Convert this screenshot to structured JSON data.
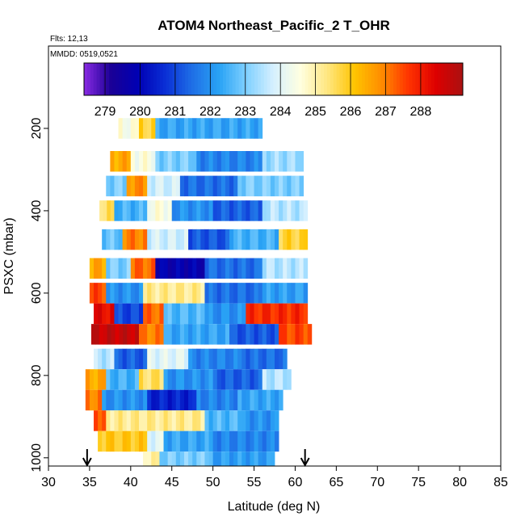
{
  "chart_data": {
    "type": "heatmap",
    "title": "ATOM4 Northeast_Pacific_2 T_OHR",
    "flights_label": "Flts: 12,13",
    "dates_label": "MMDD: 0519,0521",
    "xlabel": "Latitude (deg N)",
    "ylabel": "PSXC (mbar)",
    "xlim": [
      30,
      85
    ],
    "ylim": [
      1020,
      0
    ],
    "y_reversed": true,
    "x_ticks": [
      "30",
      "35",
      "40",
      "45",
      "50",
      "55",
      "60",
      "65",
      "70",
      "75",
      "80",
      "85"
    ],
    "y_ticks": [
      "200",
      "400",
      "600",
      "800",
      "1000"
    ],
    "colorbar": {
      "min": 278.4,
      "max": 289.2,
      "tick_labels": [
        "279",
        "280",
        "281",
        "282",
        "283",
        "284",
        "285",
        "286",
        "287",
        "288"
      ],
      "colors": [
        "#8a2be2",
        "#1a0096",
        "#0000b4",
        "#0a2fd6",
        "#1f6fe6",
        "#29a3f5",
        "#7fd0ff",
        "#d6f0ff",
        "#ffffe0",
        "#ffe680",
        "#ffc400",
        "#ff8c00",
        "#ff3300",
        "#dd0000",
        "#aa1111"
      ],
      "position": "top"
    },
    "grid": false,
    "arrows_latitude": [
      34.7,
      61.2
    ],
    "rows": [
      {
        "p": 200,
        "segments": [
          [
            38.5,
            41,
            284.5
          ],
          [
            41,
            43,
            285.8
          ],
          [
            43,
            56,
            282.3
          ]
        ]
      },
      {
        "p": 280,
        "segments": [
          [
            37.5,
            40,
            286.5
          ],
          [
            40,
            43,
            284.5
          ],
          [
            43,
            48,
            283.0
          ],
          [
            48,
            56,
            281.8
          ],
          [
            56,
            61,
            283.3
          ]
        ]
      },
      {
        "p": 340,
        "segments": [
          [
            37,
            39.5,
            283.0
          ],
          [
            39.5,
            42,
            286.8
          ],
          [
            42,
            46,
            283.8
          ],
          [
            46,
            53,
            281.5
          ],
          [
            53,
            61,
            283.0
          ]
        ]
      },
      {
        "p": 400,
        "segments": [
          [
            36.2,
            38,
            285.5
          ],
          [
            38,
            42,
            282.5
          ],
          [
            42,
            45,
            284.5
          ],
          [
            45,
            50,
            282.0
          ],
          [
            50,
            56,
            281.3
          ],
          [
            56,
            61.5,
            283.5
          ]
        ]
      },
      {
        "p": 470,
        "segments": [
          [
            36.5,
            39,
            282.8
          ],
          [
            39,
            42,
            287.0
          ],
          [
            42,
            47,
            283.8
          ],
          [
            47,
            52,
            281.2
          ],
          [
            52,
            58,
            282.5
          ],
          [
            58,
            61.5,
            285.8
          ]
        ]
      },
      {
        "p": 540,
        "segments": [
          [
            35,
            37,
            286.5
          ],
          [
            37,
            40,
            283.0
          ],
          [
            40,
            43,
            287.2
          ],
          [
            43,
            49,
            279.8
          ],
          [
            49,
            56,
            281.5
          ],
          [
            56,
            61.5,
            283.5
          ]
        ]
      },
      {
        "p": 600,
        "segments": [
          [
            35,
            37,
            287.5
          ],
          [
            37,
            41.5,
            282.0
          ],
          [
            41.5,
            49,
            285.2
          ],
          [
            49,
            56,
            281.5
          ],
          [
            56,
            61.5,
            282.2
          ]
        ]
      },
      {
        "p": 650,
        "segments": [
          [
            35.5,
            38,
            288.3
          ],
          [
            38,
            41.5,
            281.0
          ],
          [
            41.5,
            44,
            287.2
          ],
          [
            44,
            49,
            282.6
          ],
          [
            49,
            54,
            282.0
          ],
          [
            54,
            61.5,
            287.8
          ]
        ]
      },
      {
        "p": 700,
        "segments": [
          [
            35.2,
            41,
            288.8
          ],
          [
            41,
            44,
            287.0
          ],
          [
            44,
            52,
            282.3
          ],
          [
            52,
            58,
            281.2
          ],
          [
            58,
            62,
            287.5
          ]
        ]
      },
      {
        "p": 760,
        "segments": [
          [
            35.5,
            38,
            283.5
          ],
          [
            38,
            42,
            281.3
          ],
          [
            42,
            47,
            284.0
          ],
          [
            47,
            53,
            281.8
          ],
          [
            53,
            59,
            281.5
          ]
        ]
      },
      {
        "p": 810,
        "segments": [
          [
            34.5,
            37,
            286.5
          ],
          [
            37,
            41,
            282.5
          ],
          [
            41,
            44,
            285.5
          ],
          [
            44,
            50,
            282.0
          ],
          [
            50,
            56,
            281.3
          ],
          [
            56,
            59.5,
            283.5
          ]
        ]
      },
      {
        "p": 860,
        "segments": [
          [
            34.5,
            36.5,
            287.0
          ],
          [
            36.5,
            42,
            282.0
          ],
          [
            42,
            48,
            280.5
          ],
          [
            48,
            53,
            281.8
          ],
          [
            53,
            58.5,
            282.3
          ]
        ]
      },
      {
        "p": 910,
        "segments": [
          [
            35.5,
            37,
            287.5
          ],
          [
            37,
            49,
            285.2
          ],
          [
            49,
            54,
            282.6
          ],
          [
            54,
            58,
            282.0
          ]
        ]
      },
      {
        "p": 960,
        "segments": [
          [
            36,
            42,
            286.0
          ],
          [
            42,
            44,
            284.0
          ],
          [
            44,
            50,
            282.3
          ],
          [
            50,
            58,
            281.8
          ]
        ]
      },
      {
        "p": 1010,
        "segments": [
          [
            41.5,
            43.5,
            285.0
          ],
          [
            43.5,
            50,
            283.0
          ],
          [
            50,
            57.5,
            282.2
          ]
        ]
      }
    ]
  }
}
